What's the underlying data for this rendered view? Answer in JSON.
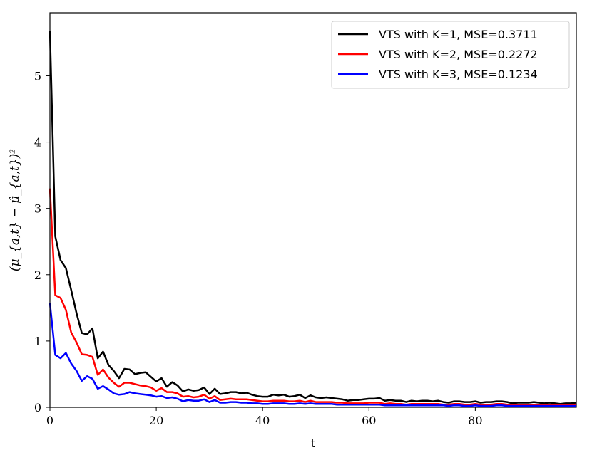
{
  "chart_data": {
    "type": "line",
    "title": "",
    "xlabel": "t",
    "ylabel": "(μ_{a,t} − μ̂_{a,t})²",
    "xlim": [
      0,
      99
    ],
    "ylim": [
      0,
      5.95
    ],
    "xticks": [
      0,
      20,
      40,
      60,
      80
    ],
    "yticks": [
      0,
      1,
      2,
      3,
      4,
      5
    ],
    "legend_position": "top-right",
    "grid": false,
    "series": [
      {
        "name": "VTS with K=1, MSE=0.3711",
        "color": "#000000",
        "values": [
          5.68,
          2.58,
          2.22,
          2.1,
          1.77,
          1.42,
          1.12,
          1.1,
          1.19,
          0.74,
          0.84,
          0.64,
          0.55,
          0.44,
          0.58,
          0.57,
          0.5,
          0.52,
          0.53,
          0.46,
          0.39,
          0.44,
          0.31,
          0.38,
          0.33,
          0.24,
          0.27,
          0.25,
          0.26,
          0.3,
          0.2,
          0.28,
          0.2,
          0.21,
          0.23,
          0.23,
          0.21,
          0.22,
          0.19,
          0.17,
          0.16,
          0.16,
          0.19,
          0.18,
          0.19,
          0.16,
          0.17,
          0.19,
          0.14,
          0.18,
          0.15,
          0.14,
          0.15,
          0.14,
          0.13,
          0.12,
          0.1,
          0.11,
          0.11,
          0.12,
          0.13,
          0.13,
          0.14,
          0.1,
          0.11,
          0.1,
          0.1,
          0.08,
          0.1,
          0.09,
          0.1,
          0.1,
          0.09,
          0.1,
          0.08,
          0.07,
          0.09,
          0.09,
          0.08,
          0.08,
          0.09,
          0.07,
          0.08,
          0.08,
          0.09,
          0.09,
          0.08,
          0.06,
          0.07,
          0.07,
          0.07,
          0.08,
          0.07,
          0.06,
          0.07,
          0.06,
          0.05,
          0.06,
          0.06,
          0.07
        ]
      },
      {
        "name": "VTS with K=2, MSE=0.2272",
        "color": "#ff0000",
        "values": [
          3.3,
          1.69,
          1.65,
          1.47,
          1.13,
          0.98,
          0.8,
          0.79,
          0.76,
          0.49,
          0.57,
          0.45,
          0.37,
          0.31,
          0.37,
          0.37,
          0.35,
          0.33,
          0.32,
          0.3,
          0.25,
          0.29,
          0.23,
          0.23,
          0.21,
          0.16,
          0.17,
          0.15,
          0.16,
          0.19,
          0.13,
          0.17,
          0.11,
          0.12,
          0.13,
          0.12,
          0.12,
          0.12,
          0.11,
          0.1,
          0.09,
          0.09,
          0.1,
          0.1,
          0.1,
          0.09,
          0.09,
          0.1,
          0.08,
          0.1,
          0.08,
          0.08,
          0.08,
          0.08,
          0.07,
          0.07,
          0.06,
          0.06,
          0.06,
          0.06,
          0.07,
          0.07,
          0.07,
          0.05,
          0.06,
          0.05,
          0.05,
          0.04,
          0.05,
          0.05,
          0.05,
          0.05,
          0.05,
          0.05,
          0.04,
          0.04,
          0.05,
          0.05,
          0.04,
          0.04,
          0.05,
          0.04,
          0.04,
          0.04,
          0.05,
          0.05,
          0.04,
          0.03,
          0.04,
          0.04,
          0.04,
          0.04,
          0.04,
          0.03,
          0.04,
          0.03,
          0.03,
          0.03,
          0.03,
          0.04
        ]
      },
      {
        "name": "VTS with K=3, MSE=0.1234",
        "color": "#0000ff",
        "values": [
          1.57,
          0.79,
          0.74,
          0.82,
          0.66,
          0.55,
          0.4,
          0.47,
          0.43,
          0.28,
          0.32,
          0.27,
          0.21,
          0.19,
          0.2,
          0.23,
          0.21,
          0.2,
          0.19,
          0.18,
          0.16,
          0.17,
          0.14,
          0.15,
          0.13,
          0.09,
          0.11,
          0.1,
          0.1,
          0.12,
          0.08,
          0.11,
          0.07,
          0.07,
          0.08,
          0.08,
          0.07,
          0.07,
          0.06,
          0.06,
          0.05,
          0.05,
          0.06,
          0.06,
          0.06,
          0.05,
          0.05,
          0.06,
          0.05,
          0.06,
          0.05,
          0.05,
          0.05,
          0.05,
          0.04,
          0.04,
          0.04,
          0.04,
          0.04,
          0.04,
          0.04,
          0.04,
          0.04,
          0.03,
          0.03,
          0.03,
          0.03,
          0.03,
          0.03,
          0.03,
          0.03,
          0.03,
          0.03,
          0.03,
          0.03,
          0.02,
          0.03,
          0.03,
          0.02,
          0.02,
          0.03,
          0.02,
          0.02,
          0.02,
          0.03,
          0.03,
          0.02,
          0.02,
          0.02,
          0.02,
          0.02,
          0.02,
          0.02,
          0.02,
          0.02,
          0.02,
          0.02,
          0.02,
          0.02,
          0.02
        ]
      }
    ]
  }
}
